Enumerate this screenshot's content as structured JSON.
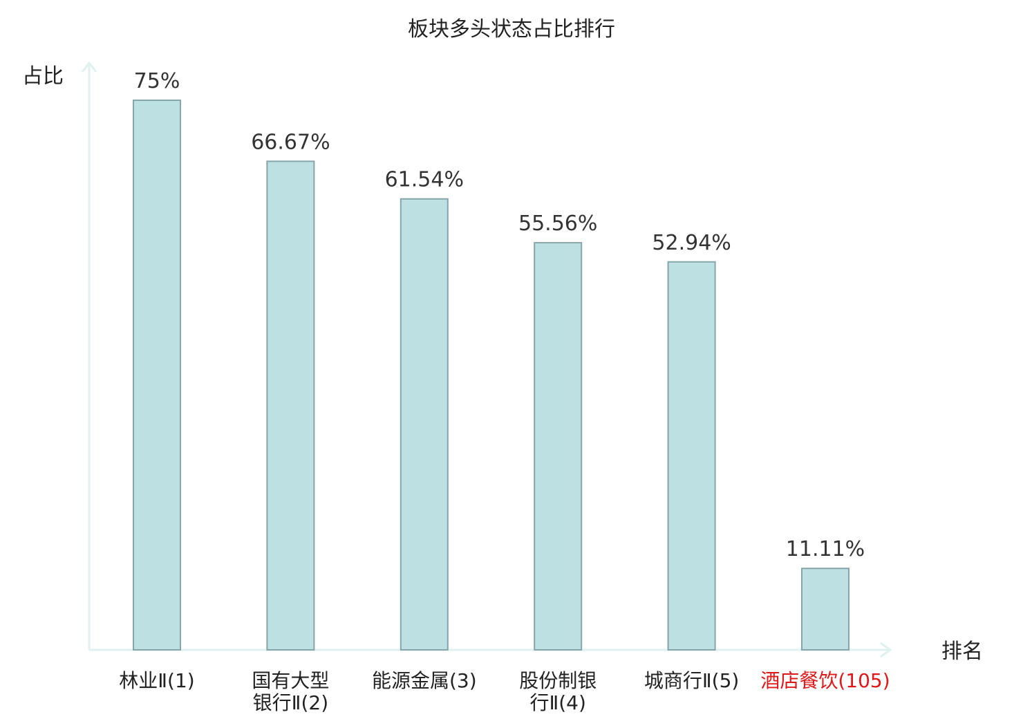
{
  "chart_data": {
    "type": "bar",
    "title": "板块多头状态占比排行",
    "xlabel": "排名",
    "ylabel": "占比",
    "ylim": [
      0,
      80
    ],
    "grid": false,
    "legend": "none",
    "categories": [
      {
        "lines": [
          "林业Ⅱ(1)"
        ],
        "highlight": false
      },
      {
        "lines": [
          "国有大型",
          "银行Ⅱ(2)"
        ],
        "highlight": false
      },
      {
        "lines": [
          "能源金属(3)"
        ],
        "highlight": false
      },
      {
        "lines": [
          "股份制银",
          "行Ⅱ(4)"
        ],
        "highlight": false
      },
      {
        "lines": [
          "城商行Ⅱ(5)"
        ],
        "highlight": false
      },
      {
        "lines": [
          "酒店餐饮(105)"
        ],
        "highlight": true
      }
    ],
    "values": [
      75,
      66.67,
      61.54,
      55.56,
      52.94,
      11.11
    ],
    "value_labels": [
      "75%",
      "66.67%",
      "61.54%",
      "55.56%",
      "52.94%",
      "11.11%"
    ]
  },
  "colors": {
    "bar_fill": "#bde0e3",
    "bar_stroke": "#86a5a8",
    "axis": "#dff2ef",
    "text": "#222222",
    "value_text": "#333333",
    "highlight": "#e01818"
  }
}
